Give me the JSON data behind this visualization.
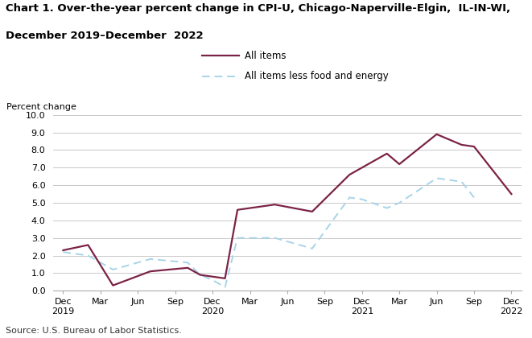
{
  "title_line1": "Chart 1. Over-the-year percent change in CPI-U, Chicago-Naperville-Elgin,  IL-IN-WI,",
  "title_line2": "December 2019–December  2022",
  "ylabel": "Percent change",
  "source": "Source: U.S. Bureau of Labor Statistics.",
  "ylim": [
    0.0,
    10.0
  ],
  "yticks": [
    0.0,
    1.0,
    2.0,
    3.0,
    4.0,
    5.0,
    6.0,
    7.0,
    8.0,
    9.0,
    10.0
  ],
  "legend_all_items": "All items",
  "legend_core": "All items less food and energy",
  "all_items_color": "#7b2346",
  "core_color": "#a8d4e8",
  "all_items_lw": 1.6,
  "core_lw": 1.4,
  "x_tick_labels": [
    "Dec\n2019",
    "Mar",
    "Jun",
    "Sep",
    "Dec\n2020",
    "Mar",
    "Jun",
    "Sep",
    "Dec\n2021",
    "Mar",
    "Jun",
    "Sep",
    "Dec\n2022"
  ],
  "x_tick_positions": [
    0,
    3,
    6,
    9,
    12,
    15,
    18,
    21,
    24,
    27,
    30,
    33,
    36
  ],
  "all_items_x": [
    0,
    2,
    4,
    7,
    10,
    11,
    12,
    13,
    14,
    15,
    17,
    20,
    23,
    24,
    26,
    27,
    30,
    32,
    33,
    36
  ],
  "all_items_y": [
    2.3,
    2.6,
    0.3,
    1.1,
    1.3,
    0.9,
    0.8,
    0.7,
    4.6,
    4.7,
    4.9,
    4.5,
    6.6,
    7.0,
    7.8,
    7.2,
    8.9,
    8.3,
    8.2,
    5.5
  ],
  "core_x": [
    0,
    2,
    4,
    7,
    10,
    11,
    12,
    13,
    14,
    15,
    17,
    20,
    23,
    24,
    26,
    27,
    30,
    32,
    33
  ],
  "core_y": [
    2.2,
    2.0,
    1.2,
    1.8,
    1.6,
    0.9,
    0.6,
    0.2,
    3.0,
    3.0,
    3.0,
    2.4,
    5.3,
    5.2,
    4.7,
    5.0,
    6.4,
    6.2,
    5.3
  ],
  "background_color": "#ffffff",
  "grid_color": "#c8c8c8"
}
